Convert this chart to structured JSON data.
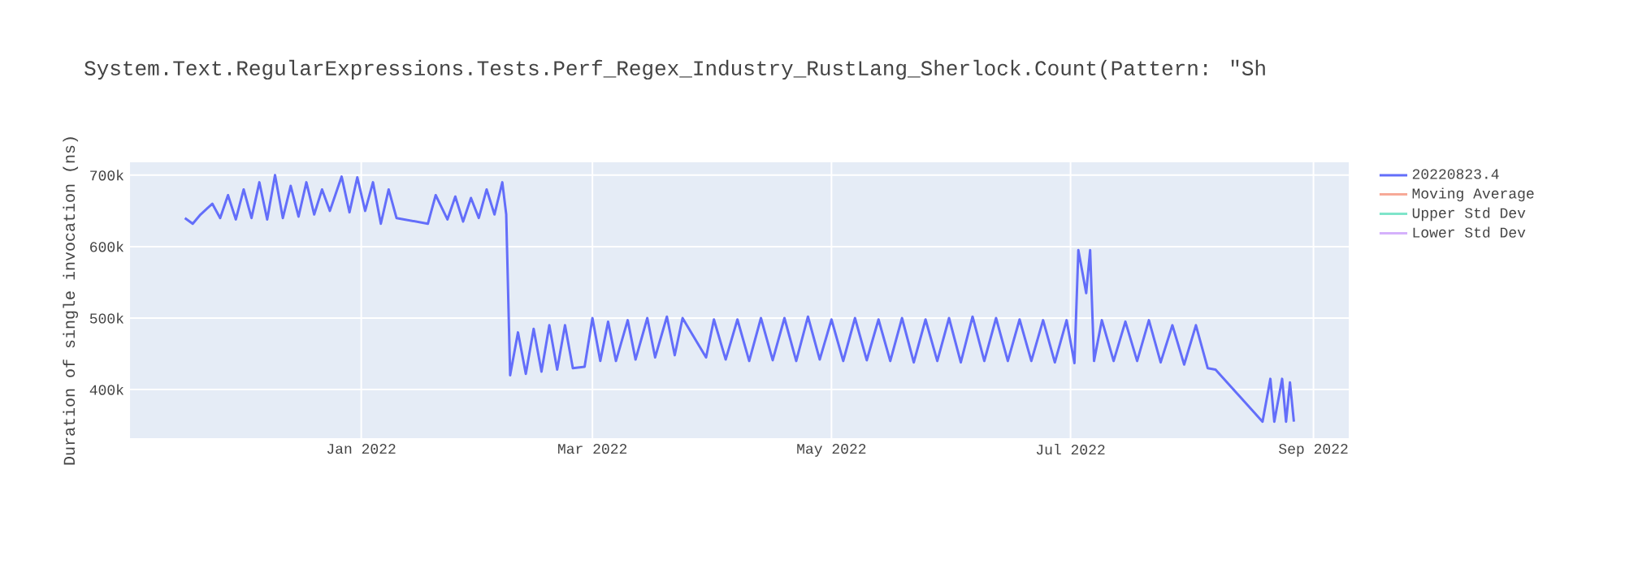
{
  "chart_data": {
    "type": "line",
    "title": "System.Text.RegularExpressions.Tests.Perf_Regex_Industry_RustLang_Sherlock.Count(Pattern: \"Sh",
    "ylabel": "Duration of single invocation (ns)",
    "x": [
      "2021-11-17",
      "2021-11-19",
      "2021-11-21",
      "2021-11-24",
      "2021-11-26",
      "2021-11-28",
      "2021-11-30",
      "2021-12-02",
      "2021-12-04",
      "2021-12-06",
      "2021-12-08",
      "2021-12-10",
      "2021-12-12",
      "2021-12-14",
      "2021-12-16",
      "2021-12-18",
      "2021-12-20",
      "2021-12-22",
      "2021-12-24",
      "2021-12-27",
      "2021-12-29",
      "2021-12-31",
      "2022-01-02",
      "2022-01-04",
      "2022-01-06",
      "2022-01-08",
      "2022-01-10",
      "2022-01-18",
      "2022-01-20",
      "2022-01-23",
      "2022-01-25",
      "2022-01-27",
      "2022-01-29",
      "2022-01-31",
      "2022-02-02",
      "2022-02-04",
      "2022-02-06",
      "2022-02-07",
      "2022-02-08",
      "2022-02-10",
      "2022-02-12",
      "2022-02-14",
      "2022-02-16",
      "2022-02-18",
      "2022-02-20",
      "2022-02-22",
      "2022-02-24",
      "2022-02-27",
      "2022-03-01",
      "2022-03-03",
      "2022-03-05",
      "2022-03-07",
      "2022-03-10",
      "2022-03-12",
      "2022-03-15",
      "2022-03-17",
      "2022-03-20",
      "2022-03-22",
      "2022-03-24",
      "2022-03-30",
      "2022-04-01",
      "2022-04-04",
      "2022-04-07",
      "2022-04-10",
      "2022-04-13",
      "2022-04-16",
      "2022-04-19",
      "2022-04-22",
      "2022-04-25",
      "2022-04-28",
      "2022-05-01",
      "2022-05-04",
      "2022-05-07",
      "2022-05-10",
      "2022-05-13",
      "2022-05-16",
      "2022-05-19",
      "2022-05-22",
      "2022-05-25",
      "2022-05-28",
      "2022-05-31",
      "2022-06-03",
      "2022-06-06",
      "2022-06-09",
      "2022-06-12",
      "2022-06-15",
      "2022-06-18",
      "2022-06-21",
      "2022-06-24",
      "2022-06-27",
      "2022-06-30",
      "2022-07-02",
      "2022-07-03",
      "2022-07-05",
      "2022-07-06",
      "2022-07-07",
      "2022-07-09",
      "2022-07-12",
      "2022-07-15",
      "2022-07-18",
      "2022-07-21",
      "2022-07-24",
      "2022-07-27",
      "2022-07-30",
      "2022-08-02",
      "2022-08-05",
      "2022-08-07",
      "2022-08-19",
      "2022-08-21",
      "2022-08-22",
      "2022-08-24",
      "2022-08-25",
      "2022-08-26",
      "2022-08-27"
    ],
    "series": [
      {
        "name": "20220823.4",
        "color": "#636efa",
        "values": [
          640000,
          632000,
          645000,
          660000,
          640000,
          672000,
          638000,
          680000,
          640000,
          690000,
          638000,
          700000,
          640000,
          685000,
          642000,
          690000,
          645000,
          680000,
          650000,
          698000,
          648000,
          697000,
          650000,
          690000,
          632000,
          680000,
          640000,
          632000,
          672000,
          638000,
          670000,
          635000,
          668000,
          640000,
          680000,
          645000,
          690000,
          645000,
          420000,
          480000,
          422000,
          485000,
          425000,
          490000,
          428000,
          490000,
          430000,
          432000,
          500000,
          440000,
          495000,
          440000,
          497000,
          442000,
          500000,
          445000,
          502000,
          448000,
          500000,
          445000,
          498000,
          442000,
          498000,
          440000,
          500000,
          441000,
          500000,
          440000,
          502000,
          442000,
          498000,
          440000,
          500000,
          441000,
          498000,
          440000,
          500000,
          438000,
          498000,
          440000,
          500000,
          438000,
          502000,
          440000,
          500000,
          440000,
          498000,
          440000,
          497000,
          438000,
          497000,
          437000,
          595000,
          535000,
          595000,
          440000,
          497000,
          440000,
          495000,
          440000,
          497000,
          438000,
          490000,
          435000,
          490000,
          430000,
          428000,
          355000,
          415000,
          355000,
          415000,
          355000,
          410000,
          355000
        ]
      },
      {
        "name": "Moving Average",
        "color": "#f7a997",
        "values": [
          null,
          null,
          null,
          null,
          null,
          null,
          null,
          null,
          null,
          null,
          null,
          null,
          null,
          null,
          null,
          null,
          null,
          null,
          null,
          null,
          null,
          null,
          null,
          null,
          null,
          null,
          null,
          null,
          null,
          null,
          null,
          null,
          null,
          null,
          null,
          null,
          null,
          null,
          null,
          null,
          null,
          null,
          null,
          null,
          null,
          null,
          null,
          null,
          null,
          null,
          null,
          null,
          null,
          null,
          null,
          null,
          null,
          null,
          null,
          null,
          null,
          null,
          null,
          null,
          null,
          null,
          null,
          null,
          null,
          null,
          null,
          null,
          null,
          null,
          null,
          null,
          null,
          null,
          null,
          null,
          null,
          null,
          null,
          null,
          null,
          null,
          null,
          null,
          null,
          null,
          null,
          null,
          null,
          null,
          null,
          null,
          null,
          null,
          null,
          null,
          null,
          null,
          null,
          null,
          null,
          null,
          null,
          null,
          null,
          null,
          null,
          null,
          null,
          null
        ]
      },
      {
        "name": "Upper Std Dev",
        "color": "#7fe5ca",
        "values": [
          null,
          null,
          null,
          null,
          null,
          null,
          null,
          null,
          null,
          null,
          null,
          null,
          null,
          null,
          null,
          null,
          null,
          null,
          null,
          null,
          null,
          null,
          null,
          null,
          null,
          null,
          null,
          null,
          null,
          null,
          null,
          null,
          null,
          null,
          null,
          null,
          null,
          null,
          null,
          null,
          null,
          null,
          null,
          null,
          null,
          null,
          null,
          null,
          null,
          null,
          null,
          null,
          null,
          null,
          null,
          null,
          null,
          null,
          null,
          null,
          null,
          null,
          null,
          null,
          null,
          null,
          null,
          null,
          null,
          null,
          null,
          null,
          null,
          null,
          null,
          null,
          null,
          null,
          null,
          null,
          null,
          null,
          null,
          null,
          null,
          null,
          null,
          null,
          null,
          null,
          null,
          null,
          null,
          null,
          null,
          null,
          null,
          null,
          null,
          null,
          null,
          null,
          null,
          null,
          null,
          null,
          null,
          null,
          null,
          null,
          null,
          null,
          null,
          null
        ]
      },
      {
        "name": "Lower Std Dev",
        "color": "#d5b1fc",
        "values": [
          null,
          null,
          null,
          null,
          null,
          null,
          null,
          null,
          null,
          null,
          null,
          null,
          null,
          null,
          null,
          null,
          null,
          null,
          null,
          null,
          null,
          null,
          null,
          null,
          null,
          null,
          null,
          null,
          null,
          null,
          null,
          null,
          null,
          null,
          null,
          null,
          null,
          null,
          null,
          null,
          null,
          null,
          null,
          null,
          null,
          null,
          null,
          null,
          null,
          null,
          null,
          null,
          null,
          null,
          null,
          null,
          null,
          null,
          null,
          null,
          null,
          null,
          null,
          null,
          null,
          null,
          null,
          null,
          null,
          null,
          null,
          null,
          null,
          null,
          null,
          null,
          null,
          null,
          null,
          null,
          null,
          null,
          null,
          null,
          null,
          null,
          null,
          null,
          null,
          null,
          null,
          null,
          null,
          null,
          null,
          null,
          null,
          null,
          null,
          null,
          null,
          null,
          null,
          null,
          null,
          null,
          null,
          null,
          null,
          null,
          null,
          null,
          null,
          null
        ]
      }
    ],
    "xlim": [
      "2021-11-03",
      "2022-09-10"
    ],
    "xticks": [
      {
        "value": "2022-01-01",
        "label": "Jan 2022"
      },
      {
        "value": "2022-03-01",
        "label": "Mar 2022"
      },
      {
        "value": "2022-05-01",
        "label": "May 2022"
      },
      {
        "value": "2022-07-01",
        "label": "Jul 2022"
      },
      {
        "value": "2022-09-01",
        "label": "Sep 2022"
      }
    ],
    "ylim": [
      332000,
      718000
    ],
    "yticks": [
      {
        "value": 400000,
        "label": "400k"
      },
      {
        "value": 500000,
        "label": "500k"
      },
      {
        "value": 600000,
        "label": "600k"
      },
      {
        "value": 700000,
        "label": "700k"
      }
    ],
    "grid": true,
    "legend": "top right",
    "marker": "none",
    "line_style": "solid"
  }
}
